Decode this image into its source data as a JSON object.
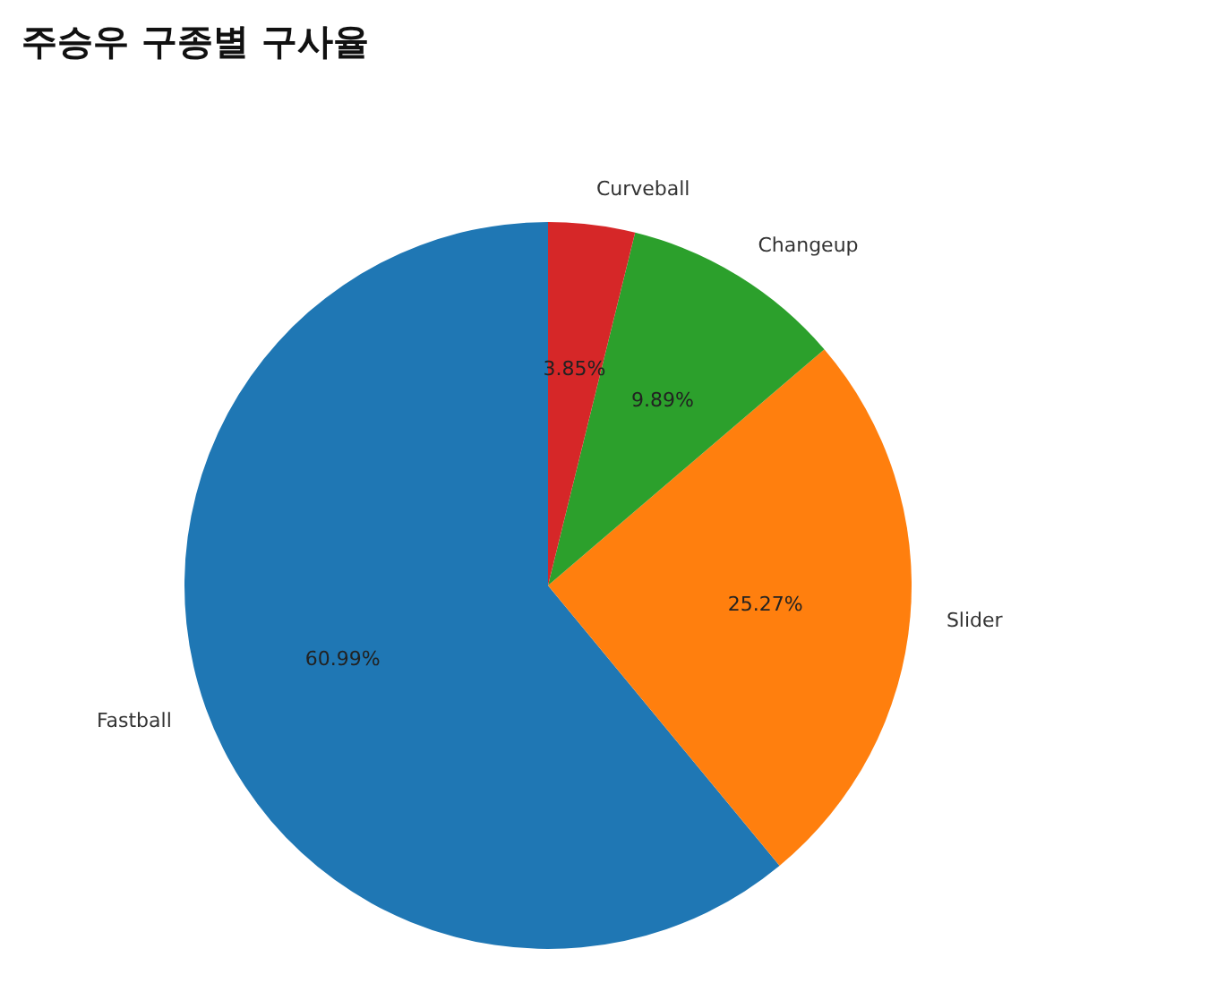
{
  "chart_data": {
    "type": "pie",
    "title": "주승우 구종별 구사율",
    "categories": [
      "Fastball",
      "Slider",
      "Changeup",
      "Curveball"
    ],
    "values": [
      60.99,
      25.27,
      9.89,
      3.85
    ],
    "colors": [
      "#1f77b4",
      "#ff7f0e",
      "#2ca02c",
      "#d62728"
    ],
    "value_labels": [
      "60.99%",
      "25.27%",
      "9.89%",
      "3.85%"
    ]
  }
}
